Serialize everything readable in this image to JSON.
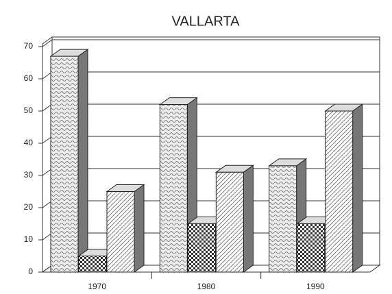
{
  "chart_data": {
    "type": "bar3d",
    "title": "VALLARTA",
    "categories": [
      "1970",
      "1980",
      "1990"
    ],
    "series": [
      {
        "color": "#e6e6e6",
        "values": [
          67,
          52,
          33
        ]
      },
      {
        "color": "#555555",
        "values": [
          5,
          15,
          15
        ]
      },
      {
        "color": "#f2f2f2",
        "values": [
          25,
          31,
          50
        ]
      }
    ],
    "ylim": [
      0,
      70
    ],
    "yticks": [
      0,
      10,
      20,
      30,
      40,
      50,
      60,
      70
    ],
    "grid": true
  }
}
